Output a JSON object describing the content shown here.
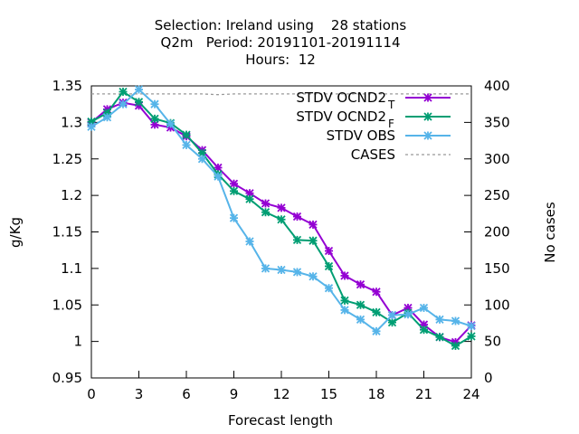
{
  "chart_data": {
    "type": "line",
    "title_lines": [
      "Selection: Ireland using    28 stations",
      "Q2m   Period: 20191101-20191114",
      "Hours:  12"
    ],
    "xlabel": "Forecast length",
    "ylabel": "g/Kg",
    "y2label": "No cases",
    "xlim": [
      0,
      24
    ],
    "ylim": [
      0.95,
      1.35
    ],
    "y2lim": [
      0,
      400
    ],
    "xticks": [
      0,
      3,
      6,
      9,
      12,
      15,
      18,
      21,
      24
    ],
    "yticks": [
      "0.95",
      "1",
      "1.05",
      "1.1",
      "1.15",
      "1.2",
      "1.25",
      "1.3",
      "1.35"
    ],
    "y2ticks": [
      "0",
      "50",
      "100",
      "150",
      "200",
      "250",
      "300",
      "350",
      "400"
    ],
    "grid": false,
    "legend_position": "top-right",
    "x": [
      0,
      1,
      2,
      3,
      4,
      5,
      6,
      7,
      8,
      9,
      10,
      11,
      12,
      13,
      14,
      15,
      16,
      17,
      18,
      19,
      20,
      21,
      22,
      23,
      24
    ],
    "series": [
      {
        "name": "STDV OCND2",
        "subscript": "T",
        "color": "#9400d3",
        "axis": "y",
        "values": [
          1.3,
          1.318,
          1.327,
          1.323,
          1.297,
          1.293,
          1.281,
          1.262,
          1.238,
          1.216,
          1.203,
          1.189,
          1.183,
          1.171,
          1.16,
          1.124,
          1.09,
          1.078,
          1.068,
          1.036,
          1.046,
          1.023,
          1.006,
          0.999,
          1.022
        ]
      },
      {
        "name": "STDV OCND2",
        "subscript": "F",
        "color": "#009e73",
        "axis": "y",
        "values": [
          1.301,
          1.313,
          1.342,
          1.328,
          1.305,
          1.299,
          1.283,
          1.258,
          1.229,
          1.206,
          1.195,
          1.177,
          1.167,
          1.139,
          1.138,
          1.103,
          1.056,
          1.05,
          1.04,
          1.026,
          1.039,
          1.016,
          1.006,
          0.994,
          1.007
        ]
      },
      {
        "name": "STDV OBS",
        "subscript": "",
        "color": "#56b4e9",
        "axis": "y",
        "values": [
          1.294,
          1.307,
          1.325,
          1.345,
          1.325,
          1.298,
          1.269,
          1.25,
          1.226,
          1.169,
          1.137,
          1.1,
          1.098,
          1.095,
          1.089,
          1.073,
          1.043,
          1.03,
          1.014,
          1.036,
          1.037,
          1.046,
          1.03,
          1.028,
          1.021
        ]
      },
      {
        "name": "CASES",
        "subscript": "",
        "color": "#999999",
        "axis": "y2",
        "style": "dashed",
        "values": [
          389,
          389,
          389,
          389,
          389,
          389,
          389,
          389,
          388,
          389,
          389,
          389,
          389,
          389,
          389,
          389,
          389,
          389,
          389,
          389,
          389,
          389,
          389,
          389,
          389
        ]
      }
    ]
  }
}
